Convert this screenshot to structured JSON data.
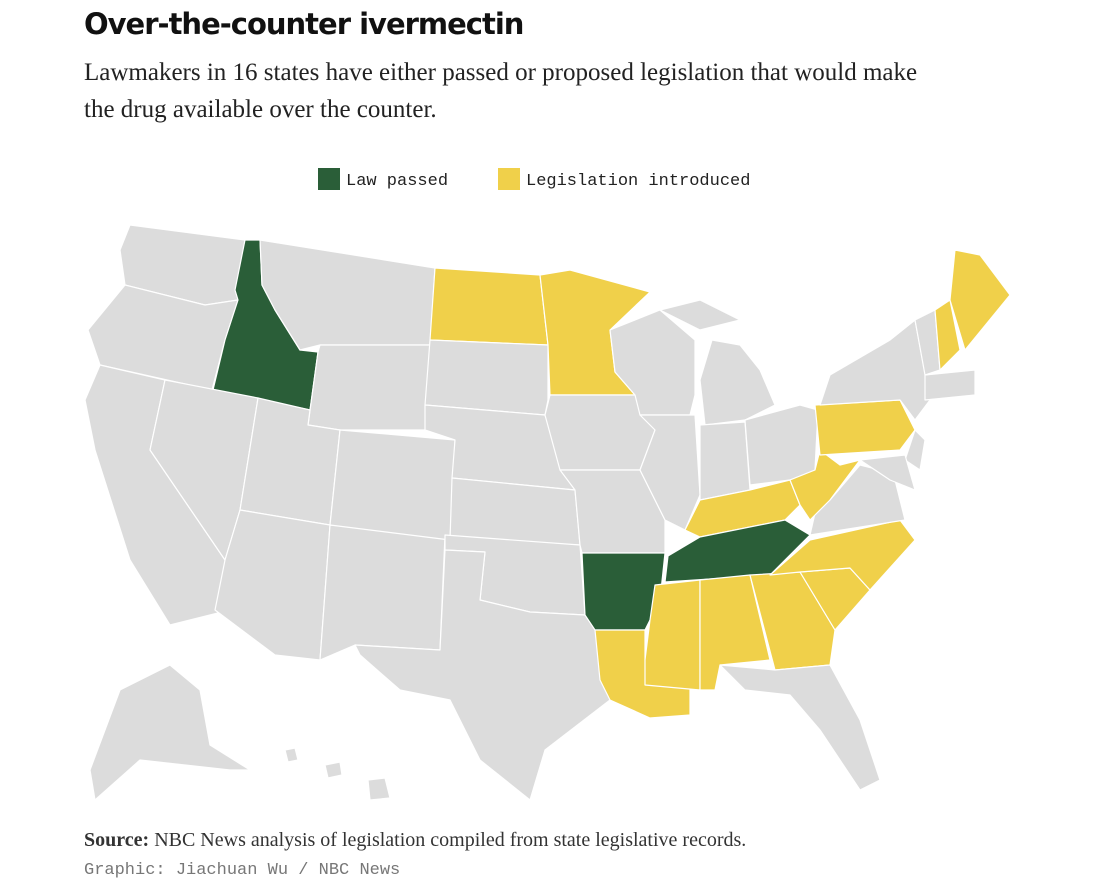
{
  "header": {
    "title": "Over-the-counter ivermectin",
    "subtitle": [
      "Lawmakers in 16 states have either passed or proposed legislation that would make",
      "the drug available over the counter."
    ]
  },
  "legend": [
    {
      "label": "Law passed",
      "color": "#2a5e38"
    },
    {
      "label": "Legislation introduced",
      "color": "#f0d04a"
    }
  ],
  "map": {
    "base_color": "#dcdcdc"
  },
  "footer": {
    "source_label": "Source:",
    "source_text": " NBC News analysis of legislation compiled from state legislative records.",
    "credit": "Graphic: Jiachuan Wu / NBC News"
  }
}
